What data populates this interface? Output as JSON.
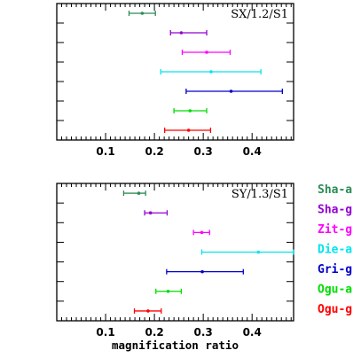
{
  "chart_data": {
    "type": "errorbar",
    "xlabel": "magnification ratio",
    "xlim": [
      0.0,
      0.485
    ],
    "xticks": [
      "0.1",
      "0.2",
      "0.3",
      "0.4"
    ],
    "legend_placement": "right",
    "series": [
      {
        "name": "Sha-a",
        "color": "#2e8b57"
      },
      {
        "name": "Sha-g",
        "color": "#9400d3"
      },
      {
        "name": "Zit-g",
        "color": "#ff00ff"
      },
      {
        "name": "Die-a",
        "color": "#00e5ee"
      },
      {
        "name": "Gri-g",
        "color": "#0000cd"
      },
      {
        "name": "Ogu-a",
        "color": "#00dd00"
      },
      {
        "name": "Ogu-g",
        "color": "#ff0000"
      }
    ],
    "panels": [
      {
        "label": "SX/1.2/S1",
        "points": [
          {
            "series": "Sha-a",
            "value": 0.175,
            "low": 0.148,
            "high": 0.202
          },
          {
            "series": "Sha-g",
            "value": 0.255,
            "low": 0.233,
            "high": 0.307
          },
          {
            "series": "Zit-g",
            "value": 0.307,
            "low": 0.257,
            "high": 0.355
          },
          {
            "series": "Die-a",
            "value": 0.316,
            "low": 0.213,
            "high": 0.418
          },
          {
            "series": "Gri-g",
            "value": 0.357,
            "low": 0.265,
            "high": 0.462
          },
          {
            "series": "Ogu-a",
            "value": 0.273,
            "low": 0.24,
            "high": 0.307
          },
          {
            "series": "Ogu-g",
            "value": 0.27,
            "low": 0.221,
            "high": 0.315
          }
        ]
      },
      {
        "label": "SY/1.3/S1",
        "points": [
          {
            "series": "Sha-a",
            "value": 0.168,
            "low": 0.137,
            "high": 0.182
          },
          {
            "series": "Sha-g",
            "value": 0.192,
            "low": 0.18,
            "high": 0.226
          },
          {
            "series": "Zit-g",
            "value": 0.297,
            "low": 0.28,
            "high": 0.313
          },
          {
            "series": "Die-a",
            "value": 0.413,
            "low": 0.297,
            "high": 0.485
          },
          {
            "series": "Gri-g",
            "value": 0.298,
            "low": 0.225,
            "high": 0.382
          },
          {
            "series": "Ogu-a",
            "value": 0.228,
            "low": 0.203,
            "high": 0.255
          },
          {
            "series": "Ogu-g",
            "value": 0.187,
            "low": 0.159,
            "high": 0.214
          }
        ]
      }
    ]
  }
}
